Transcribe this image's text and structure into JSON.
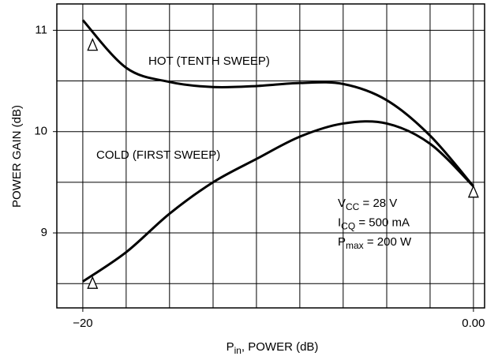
{
  "chart_data": {
    "type": "line",
    "xlabel": {
      "base": "P",
      "sub": "in",
      "rest": ", POWER (dB)"
    },
    "ylabel": "POWER GAIN (dB)",
    "xlim": [
      -21.33,
      0.57
    ],
    "ylim": [
      8.26,
      11.26
    ],
    "xticks": [
      {
        "value": -20,
        "label": "−20"
      },
      {
        "value": 0,
        "label": "0.00"
      }
    ],
    "yticks": [
      9,
      10,
      11
    ],
    "xgrid": [
      -20,
      -17.78,
      -15.56,
      -13.33,
      -11.11,
      -8.89,
      -6.67,
      -4.44,
      -2.22,
      0
    ],
    "ygrid": [
      8.5,
      9,
      9.5,
      10,
      10.5,
      11
    ],
    "grid": true,
    "x": [
      -20,
      -17.78,
      -15.56,
      -13.33,
      -11.11,
      -8.89,
      -6.67,
      -4.44,
      -2.22,
      0
    ],
    "series": [
      {
        "name": "HOT (TENTH SWEEP)",
        "color": "#000000",
        "values": [
          11.1,
          10.63,
          10.49,
          10.44,
          10.45,
          10.48,
          10.47,
          10.31,
          9.96,
          9.46
        ],
        "marker_x": [
          -19.5,
          0
        ],
        "marker_y": [
          10.85,
          9.4
        ]
      },
      {
        "name": "COLD (FIRST SWEEP)",
        "color": "#000000",
        "values": [
          8.52,
          8.81,
          9.19,
          9.5,
          9.73,
          9.95,
          10.08,
          10.08,
          9.88,
          9.46
        ],
        "marker_x": [
          -19.5
        ],
        "marker_y": [
          8.5
        ]
      }
    ],
    "annotations": [
      {
        "base": "V",
        "sub": "CC",
        "rest": " = 28 V"
      },
      {
        "base": "I",
        "sub": "CQ",
        "rest": " = 500 mA"
      },
      {
        "base": "P",
        "sub": "max",
        "rest": " = 200 W"
      }
    ]
  }
}
